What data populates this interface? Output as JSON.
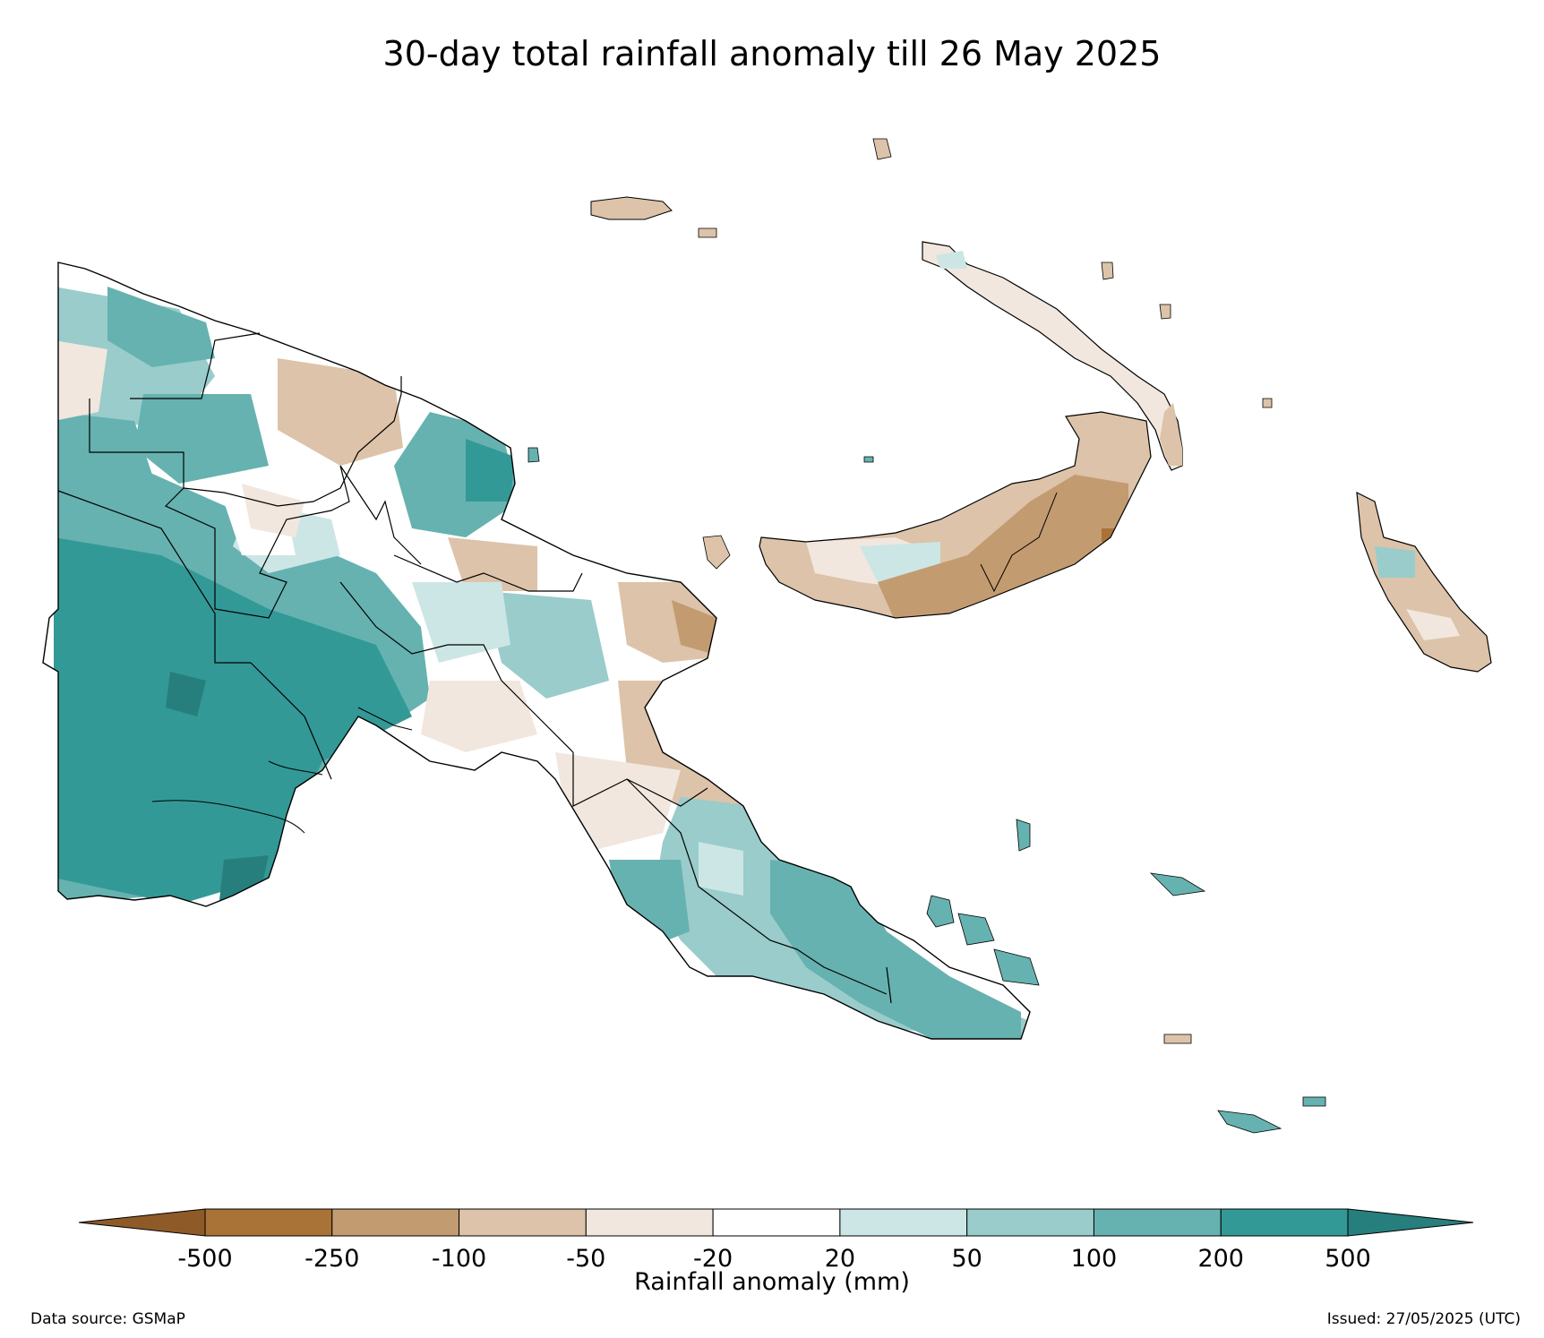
{
  "title": "30-day total rainfall anomaly till 26 May 2025",
  "colorbar": {
    "label": "Rainfall anomaly (mm)",
    "ticks": [
      "-500",
      "-250",
      "-100",
      "-50",
      "-20",
      "20",
      "50",
      "100",
      "200",
      "500"
    ],
    "bins": [
      {
        "range": [
          -250,
          -500
        ],
        "color": "#a97237"
      },
      {
        "range": [
          -100,
          -250
        ],
        "color": "#c39b70"
      },
      {
        "range": [
          -50,
          -100
        ],
        "color": "#dcc3a9"
      },
      {
        "range": [
          -20,
          -50
        ],
        "color": "#f1e7de"
      },
      {
        "range": [
          -20,
          20
        ],
        "color": "#ffffff"
      },
      {
        "range": [
          20,
          50
        ],
        "color": "#cce6e5"
      },
      {
        "range": [
          50,
          100
        ],
        "color": "#99cccb"
      },
      {
        "range": [
          100,
          200
        ],
        "color": "#66b2b0"
      },
      {
        "range": [
          200,
          500
        ],
        "color": "#339996"
      }
    ],
    "extend_low_color": "#8e5a28",
    "extend_high_color": "#267f7c"
  },
  "footer": {
    "source": "Data source: GSMaP",
    "issued": "Issued: 27/05/2025 (UTC)"
  },
  "colors": {
    "strong_dry": "#a97237",
    "dry": "#c39b70",
    "mod_dry": "#dcc3a9",
    "slight_dry": "#f1e7de",
    "neutral": "#ffffff",
    "slight_wet": "#cce6e5",
    "mod_wet": "#99cccb",
    "wet": "#66b2b0",
    "very_wet": "#339996",
    "extreme_wet": "#267f7c",
    "border": "#000000"
  }
}
